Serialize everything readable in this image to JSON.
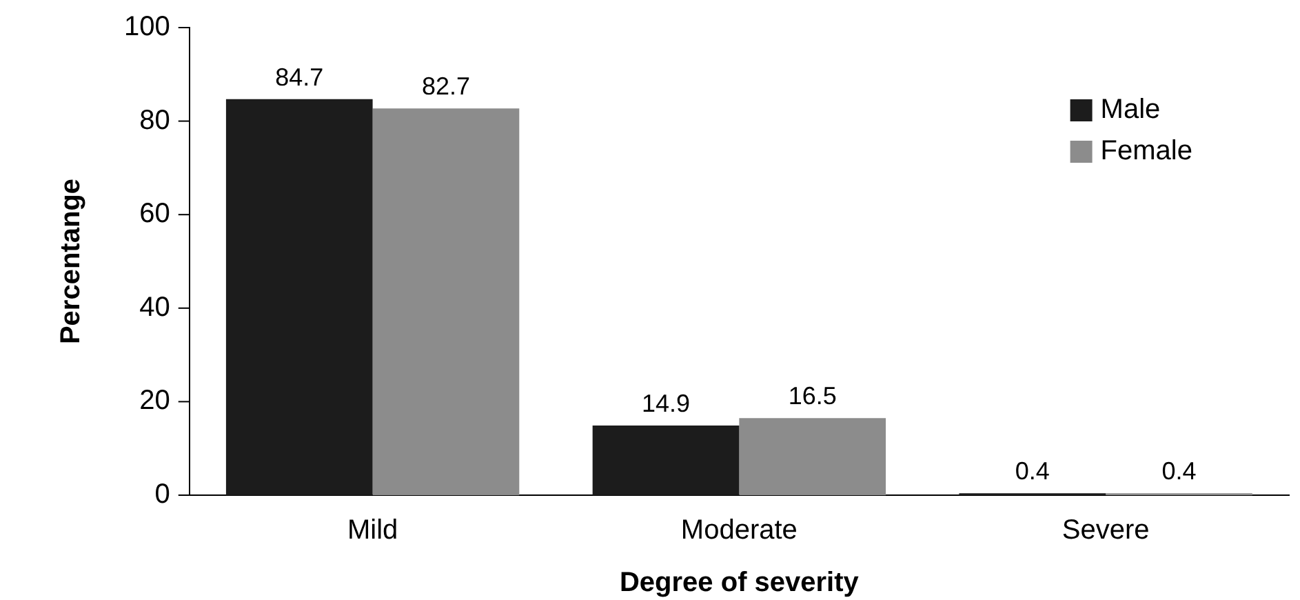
{
  "chart_data": {
    "type": "bar",
    "xlabel": "Degree of severity",
    "ylabel": "Percentange",
    "categories": [
      "Mild",
      "Moderate",
      "Severe"
    ],
    "series": [
      {
        "name": "Male",
        "color": "#1c1c1c",
        "values": [
          84.7,
          14.9,
          0.4
        ]
      },
      {
        "name": "Female",
        "color": "#8c8c8c",
        "values": [
          82.7,
          16.5,
          0.4
        ]
      }
    ],
    "ylim": [
      0,
      100
    ],
    "yticks": [
      0,
      20,
      40,
      60,
      80,
      100
    ],
    "data_labels": true,
    "legend": "top right",
    "grid": false
  }
}
